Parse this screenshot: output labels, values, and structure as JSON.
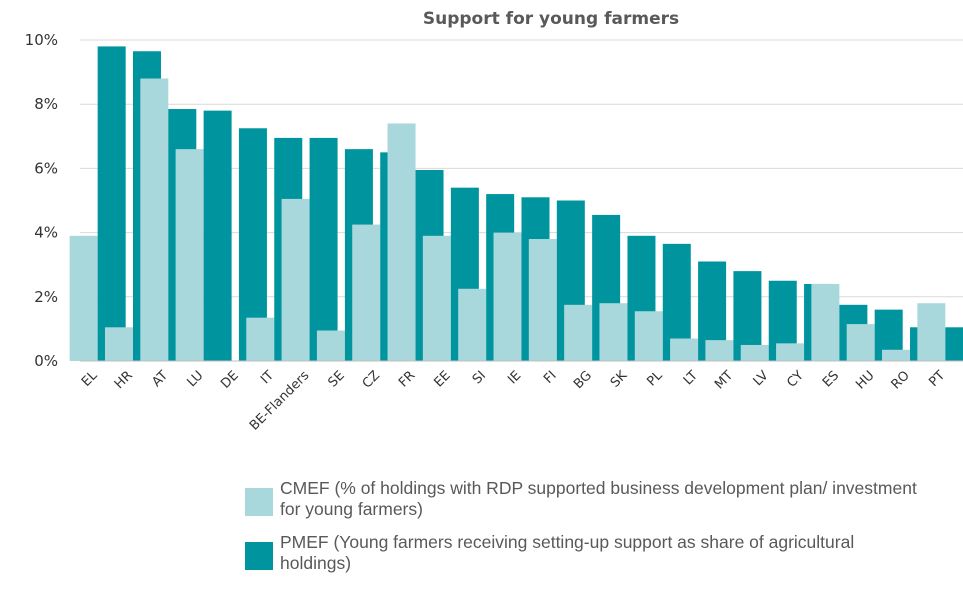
{
  "chart_data": {
    "type": "bar",
    "title": "Support for young farmers",
    "categories": [
      "EL",
      "HR",
      "AT",
      "LU",
      "DE",
      "IT",
      "BE-Flanders",
      "SE",
      "CZ",
      "FR",
      "EE",
      "SI",
      "IE",
      "FI",
      "BG",
      "SK",
      "PL",
      "LT",
      "MT",
      "LV",
      "CY",
      "ES",
      "HU",
      "RO",
      "PT"
    ],
    "series": [
      {
        "name": "CMEF (% of holdings with RDP supported business development plan/ investment for young farmers)",
        "color": "#a8d8dc",
        "values": [
          3.9,
          1.05,
          8.8,
          6.6,
          0.0,
          1.35,
          5.05,
          0.95,
          4.25,
          7.4,
          3.9,
          2.25,
          4.0,
          3.8,
          1.75,
          1.8,
          1.55,
          0.7,
          0.65,
          0.5,
          0.55,
          2.4,
          1.15,
          0.35,
          1.8
        ]
      },
      {
        "name": "PMEF (Young farmers receiving setting-up support as share of agricultural holdings)",
        "color": "#00949e",
        "values": [
          9.8,
          9.65,
          7.85,
          7.8,
          7.25,
          6.95,
          6.95,
          6.6,
          6.5,
          5.95,
          5.4,
          5.2,
          5.1,
          5.0,
          4.55,
          3.9,
          3.65,
          3.1,
          2.8,
          2.5,
          2.4,
          1.75,
          1.6,
          1.05,
          1.05
        ]
      }
    ],
    "ylim": [
      0,
      10
    ],
    "yticks": [
      "0%",
      "2%",
      "4%",
      "6%",
      "8%",
      "10%"
    ],
    "ytick_values": [
      0,
      2,
      4,
      6,
      8,
      10
    ],
    "grid": true,
    "legend_position": "bottom"
  }
}
